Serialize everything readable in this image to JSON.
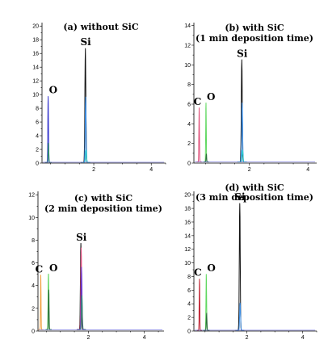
{
  "chart_data": [
    {
      "type": "line",
      "title_lines": [
        "(a) without SiC"
      ],
      "xlabel": "",
      "ylabel": "",
      "xlim": [
        0.2,
        4.5
      ],
      "ylim": [
        0,
        20.5
      ],
      "yticks": [
        0,
        2,
        4,
        6,
        8,
        10,
        12,
        14,
        16,
        18,
        20
      ],
      "xticks": [
        2,
        4
      ],
      "grid": false,
      "peaks": [
        {
          "element": "O",
          "label": "O",
          "x": 0.42,
          "width": 0.035,
          "series": [
            {
              "color": "#3b3bd0",
              "height": 9.6
            },
            {
              "color": "#2c8c6c",
              "height": 2.8
            }
          ]
        },
        {
          "element": "Si",
          "label": "Si",
          "x": 1.72,
          "width": 0.05,
          "series": [
            {
              "color": "#111111",
              "height": 16.6
            },
            {
              "color": "#3b8ee6",
              "height": 9.5
            },
            {
              "color": "#20c8c8",
              "height": 1.8
            }
          ]
        }
      ]
    },
    {
      "type": "line",
      "title_lines": [
        "(b) with SiC",
        "(1 min deposition time)"
      ],
      "xlabel": "",
      "ylabel": "",
      "xlim": [
        0.1,
        4.3
      ],
      "ylim": [
        0,
        14.3
      ],
      "yticks": [
        0,
        2,
        4,
        6,
        8,
        10,
        12,
        14
      ],
      "xticks": [
        2,
        4
      ],
      "grid": false,
      "peaks": [
        {
          "element": "C",
          "label": "C",
          "x": 0.28,
          "width": 0.03,
          "series": [
            {
              "color": "#e0507a",
              "height": 5.5
            }
          ]
        },
        {
          "element": "O",
          "label": "O",
          "x": 0.52,
          "width": 0.03,
          "series": [
            {
              "color": "#60d860",
              "height": 6.0
            },
            {
              "color": "#2c6c3c",
              "height": 0.8
            }
          ]
        },
        {
          "element": "Si",
          "label": "Si",
          "x": 1.75,
          "width": 0.05,
          "series": [
            {
              "color": "#111111",
              "height": 10.4
            },
            {
              "color": "#3b8ee6",
              "height": 6.0
            },
            {
              "color": "#20c8c8",
              "height": 1.2
            }
          ]
        }
      ]
    },
    {
      "type": "line",
      "title_lines": [
        "(c) with SiC",
        "(2 min deposition time)"
      ],
      "xlabel": "",
      "ylabel": "",
      "xlim": [
        0.2,
        4.7
      ],
      "ylim": [
        0,
        12.3
      ],
      "yticks": [
        0,
        2,
        4,
        6,
        8,
        10,
        12
      ],
      "xticks": [
        2,
        4
      ],
      "grid": false,
      "peaks": [
        {
          "element": "C",
          "label": "C",
          "x": 0.3,
          "width": 0.03,
          "series": [
            {
              "color": "#f0a040",
              "height": 4.8
            }
          ]
        },
        {
          "element": "O",
          "label": "O",
          "x": 0.58,
          "width": 0.035,
          "series": [
            {
              "color": "#50d050",
              "height": 4.9
            },
            {
              "color": "#2c6c3c",
              "height": 3.5
            }
          ]
        },
        {
          "element": "Si",
          "label": "Si",
          "x": 1.75,
          "width": 0.05,
          "series": [
            {
              "color": "#111111",
              "height": 7.6
            },
            {
              "color": "#e05080",
              "height": 7.2
            },
            {
              "color": "#6a3bd0",
              "height": 5.5
            },
            {
              "color": "#2c8c6c",
              "height": 3.0
            }
          ]
        }
      ]
    },
    {
      "type": "line",
      "title_lines": [
        "(d) with SiC",
        "(3 min deposition time)"
      ],
      "xlabel": "",
      "ylabel": "",
      "xlim": [
        0.1,
        4.5
      ],
      "ylim": [
        0,
        20.5
      ],
      "yticks": [
        0,
        2,
        4,
        6,
        8,
        10,
        12,
        14,
        16,
        18,
        20
      ],
      "xticks": [
        2,
        4
      ],
      "grid": false,
      "peaks": [
        {
          "element": "C",
          "label": "C",
          "x": 0.3,
          "width": 0.03,
          "series": [
            {
              "color": "#c02030",
              "height": 7.5
            }
          ]
        },
        {
          "element": "O",
          "label": "O",
          "x": 0.55,
          "width": 0.035,
          "series": [
            {
              "color": "#60d860",
              "height": 8.2
            },
            {
              "color": "#2c6c3c",
              "height": 2.5
            }
          ]
        },
        {
          "element": "Si",
          "label": "Si",
          "x": 1.75,
          "width": 0.05,
          "series": [
            {
              "color": "#111111",
              "height": 18.6
            },
            {
              "color": "#3b8ee6",
              "height": 4.0
            }
          ]
        }
      ]
    }
  ]
}
